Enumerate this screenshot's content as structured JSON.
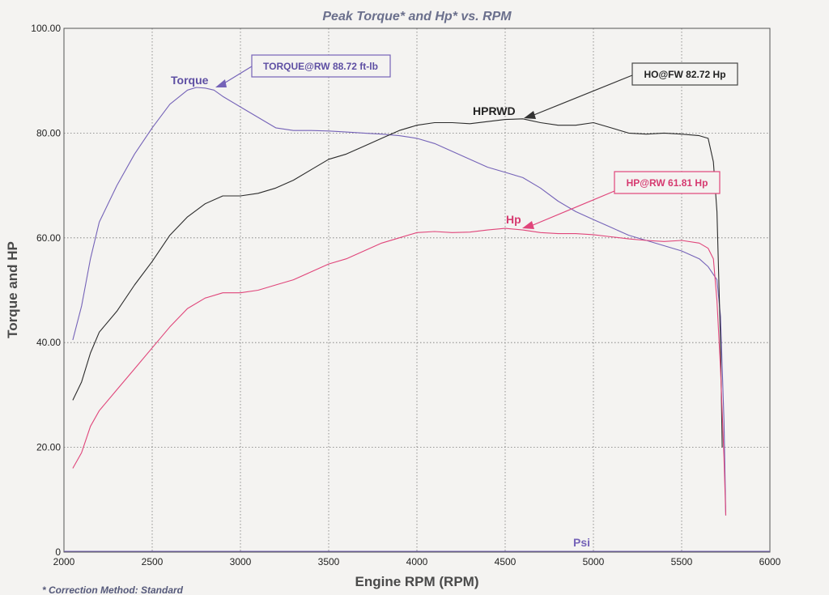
{
  "chart_data": {
    "type": "line",
    "title": "Peak Torque* and Hp* vs. RPM",
    "xlabel": "Engine RPM (RPM)",
    "ylabel": "Torque and HP",
    "xlim": [
      2000,
      6000
    ],
    "ylim": [
      0,
      100
    ],
    "x_ticks": [
      "2000",
      "2500",
      "3000",
      "3500",
      "4000",
      "4500",
      "5000",
      "5500",
      "6000"
    ],
    "y_ticks": [
      "0",
      "20.00",
      "40.00",
      "60.00",
      "80.00",
      "100.00"
    ],
    "grid": true,
    "footnote": "* Correction Method: Standard",
    "series": [
      {
        "key": "torque",
        "color": "#7563b8",
        "x": [
          2050,
          2100,
          2150,
          2200,
          2300,
          2400,
          2500,
          2600,
          2700,
          2750,
          2800,
          2850,
          2900,
          3000,
          3100,
          3200,
          3300,
          3400,
          3500,
          3600,
          3700,
          3800,
          3900,
          4000,
          4100,
          4200,
          4300,
          4400,
          4500,
          4600,
          4700,
          4800,
          4900,
          5000,
          5100,
          5200,
          5300,
          5400,
          5500,
          5600,
          5650,
          5700,
          5720,
          5740,
          5750
        ],
        "y": [
          40.5,
          47,
          56,
          63,
          70,
          76,
          81,
          85.5,
          88.2,
          88.72,
          88.6,
          88.2,
          87,
          85,
          83,
          81,
          80.5,
          80.5,
          80.4,
          80.2,
          80,
          79.8,
          79.5,
          79,
          78,
          76.5,
          75,
          73.5,
          72.5,
          71.5,
          69.5,
          67,
          65,
          63.5,
          62,
          60.5,
          59.5,
          58.5,
          57.5,
          56,
          54.5,
          52,
          45,
          25,
          7
        ]
      },
      {
        "key": "hprwd",
        "color": "#2b2b2b",
        "x": [
          2050,
          2100,
          2150,
          2200,
          2300,
          2400,
          2500,
          2600,
          2700,
          2800,
          2900,
          3000,
          3100,
          3200,
          3300,
          3400,
          3500,
          3600,
          3700,
          3800,
          3900,
          4000,
          4100,
          4200,
          4300,
          4400,
          4500,
          4600,
          4700,
          4800,
          4900,
          5000,
          5100,
          5200,
          5300,
          5400,
          5500,
          5600,
          5650,
          5680,
          5700,
          5720,
          5730
        ],
        "y": [
          29,
          32.5,
          38,
          42,
          46,
          51,
          55.5,
          60.5,
          64,
          66.5,
          68,
          68,
          68.5,
          69.5,
          71,
          73,
          75,
          76,
          77.5,
          79,
          80.5,
          81.5,
          82,
          82,
          81.8,
          82.2,
          82.6,
          82.72,
          82,
          81.5,
          81.5,
          82,
          81,
          80,
          79.8,
          80,
          79.8,
          79.5,
          79,
          74.5,
          65,
          40,
          20
        ]
      },
      {
        "key": "hp",
        "color": "#e0457a",
        "x": [
          2050,
          2100,
          2150,
          2200,
          2300,
          2400,
          2500,
          2600,
          2700,
          2800,
          2900,
          3000,
          3100,
          3200,
          3300,
          3400,
          3500,
          3600,
          3700,
          3800,
          3900,
          4000,
          4100,
          4200,
          4300,
          4400,
          4500,
          4600,
          4700,
          4800,
          4900,
          5000,
          5100,
          5200,
          5300,
          5400,
          5500,
          5600,
          5650,
          5680,
          5700,
          5720,
          5740,
          5750
        ],
        "y": [
          16,
          19,
          24,
          27,
          31,
          35,
          39,
          43,
          46.5,
          48.5,
          49.5,
          49.5,
          50,
          51,
          52,
          53.5,
          55,
          56,
          57.5,
          59,
          60,
          61,
          61.2,
          61,
          61.1,
          61.5,
          61.81,
          61.5,
          61,
          60.8,
          60.8,
          60.6,
          60.2,
          59.8,
          59.5,
          59.3,
          59.5,
          59,
          58,
          56,
          48,
          35,
          18,
          7
        ]
      }
    ],
    "curve_labels": {
      "torque": "Torque",
      "hprwd": "HPRWD",
      "hp": "Hp",
      "psi": "Psi"
    },
    "annotations": {
      "torque_peak": "TORQUE@RW 88.72 ft-lb",
      "hprwd_peak": "HO@FW 82.72 Hp",
      "hp_peak": "HP@RW 61.81 Hp"
    }
  }
}
